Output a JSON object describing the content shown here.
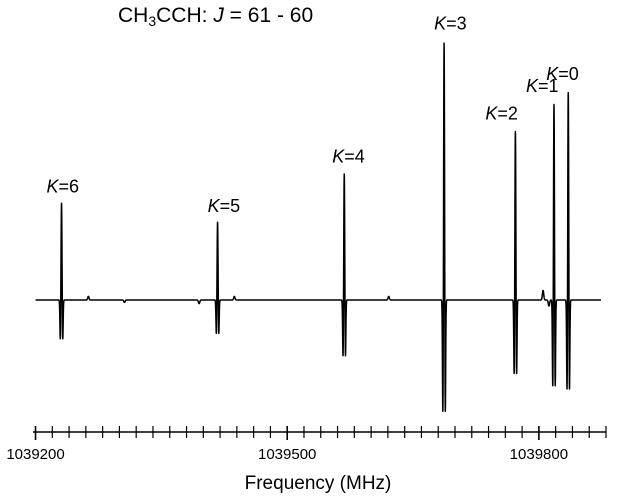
{
  "chart_data": {
    "type": "line",
    "title": {
      "molecule_prefix": "CH",
      "molecule_sub": "3",
      "molecule_suffix": "CCH:",
      "quantum_symbol": "J",
      "quantum_value": "= 61 - 60"
    },
    "xlabel": "Frequency (MHz)",
    "ylabel": "",
    "xlim": [
      1039197,
      1039880
    ],
    "ylim": [
      -1.0,
      1.0
    ],
    "x_ticks": {
      "major": [
        1039200,
        1039500,
        1039800
      ],
      "major_labels": [
        "1039200",
        "1039500",
        "1039800"
      ],
      "minor_step": 20
    },
    "grid": false,
    "series": [
      {
        "color": "#000000",
        "baseline": 0.0,
        "lines": [
          {
            "k_symbol": "K",
            "k_value": "=6",
            "x": 1039231,
            "peak": 0.82,
            "trough": -0.35
          },
          {
            "k_symbol": "K",
            "k_value": "=5",
            "x": 1039417,
            "peak": 0.66,
            "trough": -0.3
          },
          {
            "k_symbol": "K",
            "k_value": "=4",
            "x": 1039568,
            "peak": 1.07,
            "trough": -0.5
          },
          {
            "k_symbol": "K",
            "k_value": "=3",
            "x": 1039687,
            "peak": 2.18,
            "trough": -1.0
          },
          {
            "k_symbol": "K",
            "k_value": "=2",
            "x": 1039772,
            "peak": 1.43,
            "trough": -0.66
          },
          {
            "k_symbol": "K",
            "k_value": "=1",
            "x": 1039818,
            "peak": 1.66,
            "trough": -0.77
          },
          {
            "k_symbol": "K",
            "k_value": "=0",
            "x": 1039835,
            "peak": 1.76,
            "trough": -0.8
          }
        ],
        "minor_features": [
          {
            "x": 1039263,
            "amp": 0.03
          },
          {
            "x": 1039306,
            "amp": -0.02
          },
          {
            "x": 1039395,
            "amp": -0.03
          },
          {
            "x": 1039437,
            "amp": 0.03
          },
          {
            "x": 1039621,
            "amp": 0.03
          },
          {
            "x": 1039805,
            "amp": 0.08
          },
          {
            "x": 1039812,
            "amp": -0.05
          }
        ]
      }
    ]
  }
}
